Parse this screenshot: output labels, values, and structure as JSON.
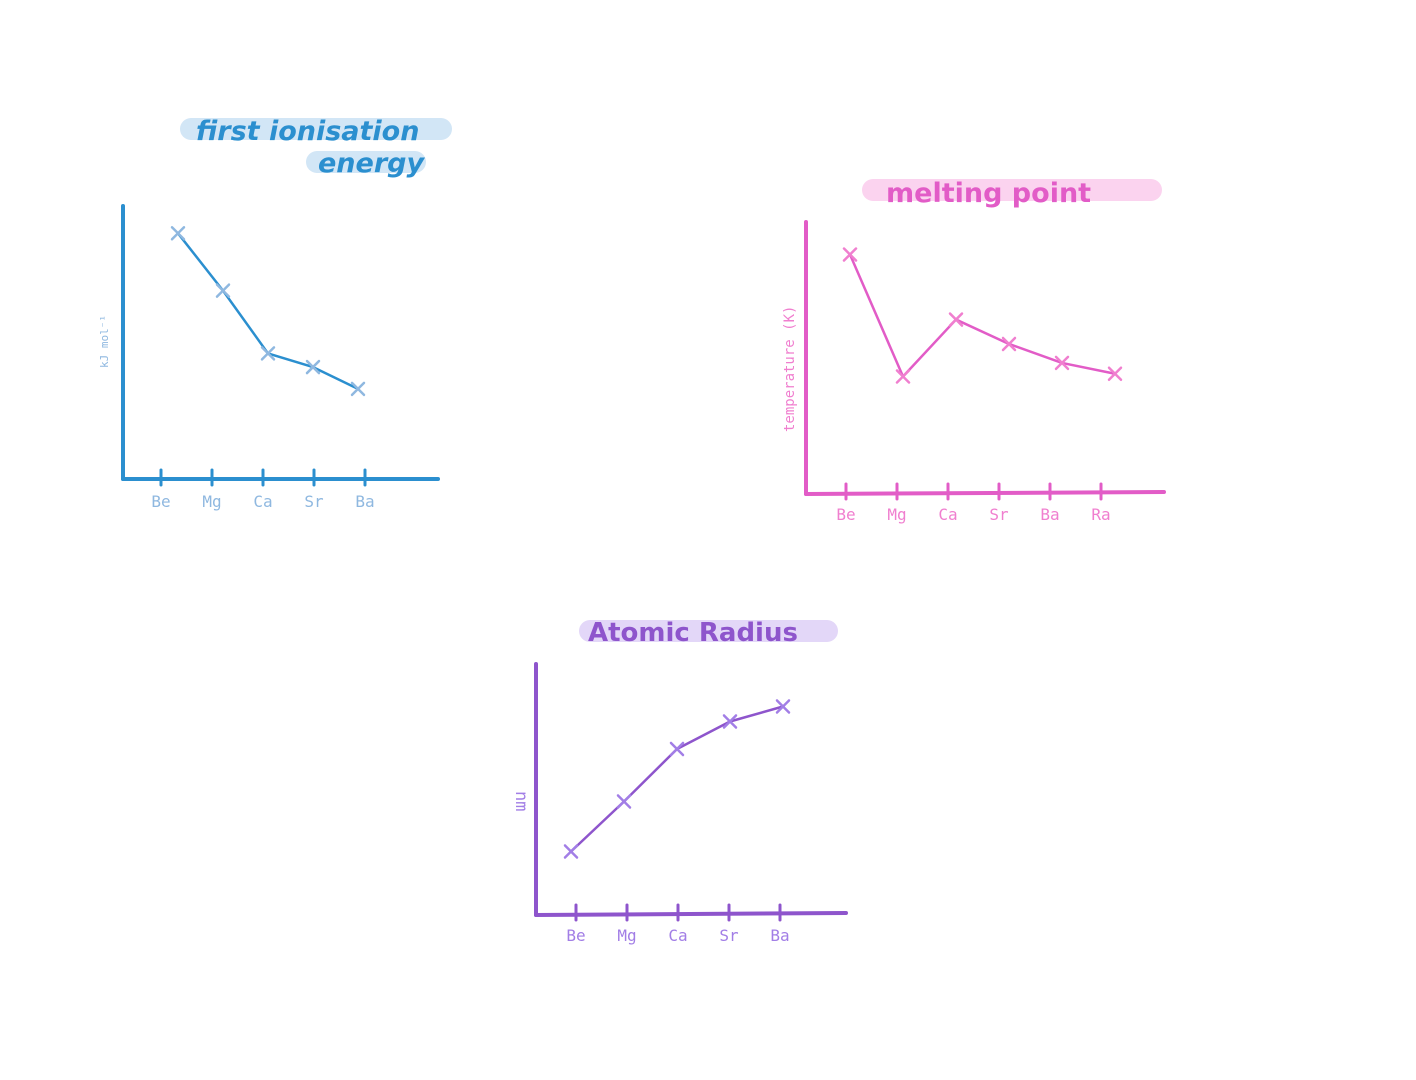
{
  "chart_data": [
    {
      "id": "ionisation",
      "type": "line",
      "title_lines": [
        "first ionisation",
        "energy"
      ],
      "ylabel": "kJ mol⁻¹",
      "categories": [
        "Be",
        "Mg",
        "Ca",
        "Sr",
        "Ba"
      ],
      "point_x": [
        "Be",
        "Mg",
        "Ca",
        "Sr",
        "Ba"
      ],
      "values": [
        90,
        69,
        46,
        41,
        33
      ],
      "ylim": [
        0,
        100
      ],
      "color": "#2b8fcf",
      "label_color": "#8fb8e0",
      "highlight": "#d2e6f6"
    },
    {
      "id": "melting",
      "type": "line",
      "title_lines": [
        "melting point"
      ],
      "ylabel": "temperature (K)",
      "categories": [
        "Be",
        "Mg",
        "Ca",
        "Sr",
        "Ba",
        "Ra"
      ],
      "point_x": [
        "Be",
        "Mg",
        "Ca",
        "Sr",
        "Ba",
        "Ra"
      ],
      "values": [
        88,
        43,
        64,
        55,
        48,
        44
      ],
      "ylim": [
        0,
        100
      ],
      "color": "#e25cc7",
      "label_color": "#f07fcf",
      "highlight": "#fbd3ef"
    },
    {
      "id": "radius",
      "type": "line",
      "title_lines": [
        "Atomic Radius"
      ],
      "ylabel": "nm",
      "categories": [
        "Be",
        "Mg",
        "Ca",
        "Sr",
        "Ba"
      ],
      "point_x": [
        "Be",
        "Mg",
        "Ca",
        "Sr",
        "Ba"
      ],
      "values": [
        25,
        45,
        66,
        77,
        83
      ],
      "ylim": [
        0,
        100
      ],
      "color": "#8e55cc",
      "label_color": "#a27ee6",
      "highlight": "#e3d7f8"
    }
  ]
}
